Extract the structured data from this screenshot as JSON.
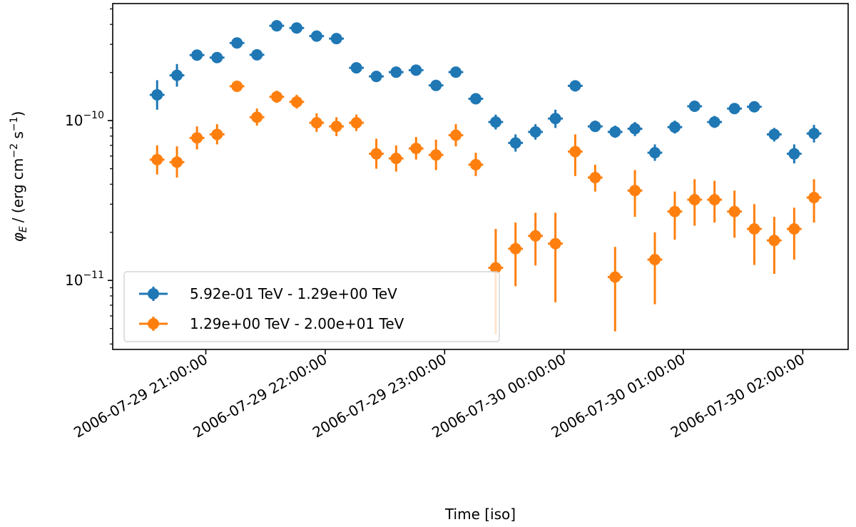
{
  "chart_data": {
    "type": "scatter",
    "title": "",
    "xlabel": "Time [iso]",
    "ylabel": {
      "symbol": "φ",
      "subscript": "E",
      "open": "/ (erg cm",
      "exp1": "−2",
      "mid": " s",
      "exp2": "−1",
      "close": ")"
    },
    "yscale": "log",
    "ylim": [
      3.7e-12,
      5.4e-10
    ],
    "xlim_hours": [
      -0.78,
      5.38
    ],
    "x_origin": "2006-07-29 21:00:00",
    "x_ticks": [
      {
        "hours": 0,
        "label": "2006-07-29 21:00:00"
      },
      {
        "hours": 1,
        "label": "2006-07-29 22:00:00"
      },
      {
        "hours": 2,
        "label": "2006-07-29 23:00:00"
      },
      {
        "hours": 3,
        "label": "2006-07-30 00:00:00"
      },
      {
        "hours": 4,
        "label": "2006-07-30 01:00:00"
      },
      {
        "hours": 5,
        "label": "2006-07-30 02:00:00"
      }
    ],
    "y_ticks": [
      {
        "value": 1e-10,
        "base": "10",
        "exp": "−10"
      },
      {
        "value": 1e-11,
        "base": "10",
        "exp": "−11"
      }
    ],
    "bin_half_width_hours": 0.062,
    "legend_position": "lower-left",
    "series": [
      {
        "name": "5.92e-01 TeV - 1.29e+00 TeV",
        "color": "#1f77b4",
        "points": [
          {
            "t": -0.408,
            "y": 1.45e-10,
            "lo": 1.17e-10,
            "hi": 1.79e-10
          },
          {
            "t": -0.242,
            "y": 1.92e-10,
            "lo": 1.63e-10,
            "hi": 2.26e-10
          },
          {
            "t": -0.074,
            "y": 2.57e-10,
            "lo": 2.39e-10,
            "hi": 2.76e-10
          },
          {
            "t": 0.094,
            "y": 2.48e-10,
            "lo": 2.33e-10,
            "hi": 2.64e-10
          },
          {
            "t": 0.261,
            "y": 3.06e-10,
            "lo": 2.89e-10,
            "hi": 3.24e-10
          },
          {
            "t": 0.428,
            "y": 2.58e-10,
            "lo": 2.46e-10,
            "hi": 2.7e-10
          },
          {
            "t": 0.594,
            "y": 3.92e-10,
            "lo": 3.78e-10,
            "hi": 4.06e-10
          },
          {
            "t": 0.761,
            "y": 3.8e-10,
            "lo": 3.65e-10,
            "hi": 3.95e-10
          },
          {
            "t": 0.928,
            "y": 3.38e-10,
            "lo": 3.23e-10,
            "hi": 3.54e-10
          },
          {
            "t": 1.094,
            "y": 3.26e-10,
            "lo": 3.1e-10,
            "hi": 3.43e-10
          },
          {
            "t": 1.261,
            "y": 2.14e-10,
            "lo": 2.03e-10,
            "hi": 2.26e-10
          },
          {
            "t": 1.428,
            "y": 1.89e-10,
            "lo": 1.78e-10,
            "hi": 2e-10
          },
          {
            "t": 1.594,
            "y": 2.01e-10,
            "lo": 1.91e-10,
            "hi": 2.11e-10
          },
          {
            "t": 1.761,
            "y": 2.07e-10,
            "lo": 1.96e-10,
            "hi": 2.18e-10
          },
          {
            "t": 1.928,
            "y": 1.66e-10,
            "lo": 1.55e-10,
            "hi": 1.78e-10
          },
          {
            "t": 2.094,
            "y": 2.01e-10,
            "lo": 1.91e-10,
            "hi": 2.12e-10
          },
          {
            "t": 2.261,
            "y": 1.37e-10,
            "lo": 1.28e-10,
            "hi": 1.47e-10
          },
          {
            "t": 2.428,
            "y": 9.8e-11,
            "lo": 8.8e-11,
            "hi": 1.09e-10
          },
          {
            "t": 2.594,
            "y": 7.25e-11,
            "lo": 6.4e-11,
            "hi": 8.2e-11
          },
          {
            "t": 2.761,
            "y": 8.5e-11,
            "lo": 7.6e-11,
            "hi": 9.5e-11
          },
          {
            "t": 2.928,
            "y": 1.03e-10,
            "lo": 9e-11,
            "hi": 1.17e-10
          },
          {
            "t": 3.094,
            "y": 1.65e-10,
            "lo": 1.52e-10,
            "hi": 1.79e-10
          },
          {
            "t": 3.261,
            "y": 9.2e-11,
            "lo": 8.5e-11,
            "hi": 1e-10
          },
          {
            "t": 3.428,
            "y": 8.5e-11,
            "lo": 7.8e-11,
            "hi": 9.3e-11
          },
          {
            "t": 3.594,
            "y": 8.9e-11,
            "lo": 8e-11,
            "hi": 9.8e-11
          },
          {
            "t": 3.761,
            "y": 6.3e-11,
            "lo": 5.6e-11,
            "hi": 7.1e-11
          },
          {
            "t": 3.928,
            "y": 9.1e-11,
            "lo": 8.3e-11,
            "hi": 1e-10
          },
          {
            "t": 4.094,
            "y": 1.23e-10,
            "lo": 1.14e-10,
            "hi": 1.33e-10
          },
          {
            "t": 4.261,
            "y": 9.8e-11,
            "lo": 9e-11,
            "hi": 1.07e-10
          },
          {
            "t": 4.428,
            "y": 1.19e-10,
            "lo": 1.11e-10,
            "hi": 1.28e-10
          },
          {
            "t": 4.594,
            "y": 1.22e-10,
            "lo": 1.13e-10,
            "hi": 1.32e-10
          },
          {
            "t": 4.761,
            "y": 8.2e-11,
            "lo": 7.4e-11,
            "hi": 9e-11
          },
          {
            "t": 4.928,
            "y": 6.2e-11,
            "lo": 5.4e-11,
            "hi": 7.1e-11
          },
          {
            "t": 5.094,
            "y": 8.3e-11,
            "lo": 7.3e-11,
            "hi": 9.4e-11
          }
        ]
      },
      {
        "name": "1.29e+00 TeV - 2.00e+01 TeV",
        "color": "#ff7f0e",
        "points": [
          {
            "t": -0.408,
            "y": 5.7e-11,
            "lo": 4.6e-11,
            "hi": 7e-11
          },
          {
            "t": -0.242,
            "y": 5.5e-11,
            "lo": 4.4e-11,
            "hi": 6.9e-11
          },
          {
            "t": -0.074,
            "y": 7.8e-11,
            "lo": 6.6e-11,
            "hi": 9.2e-11
          },
          {
            "t": 0.094,
            "y": 8.2e-11,
            "lo": 7.1e-11,
            "hi": 9.5e-11
          },
          {
            "t": 0.261,
            "y": 1.64e-10,
            "lo": 1.54e-10,
            "hi": 1.75e-10
          },
          {
            "t": 0.428,
            "y": 1.05e-10,
            "lo": 9.3e-11,
            "hi": 1.19e-10
          },
          {
            "t": 0.594,
            "y": 1.41e-10,
            "lo": 1.29e-10,
            "hi": 1.54e-10
          },
          {
            "t": 0.761,
            "y": 1.31e-10,
            "lo": 1.19e-10,
            "hi": 1.45e-10
          },
          {
            "t": 0.928,
            "y": 9.7e-11,
            "lo": 8.5e-11,
            "hi": 1.11e-10
          },
          {
            "t": 1.094,
            "y": 9.2e-11,
            "lo": 8e-11,
            "hi": 1.05e-10
          },
          {
            "t": 1.261,
            "y": 9.7e-11,
            "lo": 8.6e-11,
            "hi": 1.09e-10
          },
          {
            "t": 1.428,
            "y": 6.2e-11,
            "lo": 5e-11,
            "hi": 7.7e-11
          },
          {
            "t": 1.594,
            "y": 5.8e-11,
            "lo": 4.8e-11,
            "hi": 7e-11
          },
          {
            "t": 1.761,
            "y": 6.7e-11,
            "lo": 5.7e-11,
            "hi": 7.9e-11
          },
          {
            "t": 1.928,
            "y": 6.1e-11,
            "lo": 4.9e-11,
            "hi": 7.6e-11
          },
          {
            "t": 2.094,
            "y": 8.1e-11,
            "lo": 6.9e-11,
            "hi": 9.5e-11
          },
          {
            "t": 2.261,
            "y": 5.3e-11,
            "lo": 4.5e-11,
            "hi": 6.3e-11
          },
          {
            "t": 2.428,
            "y": 1.2e-11,
            "lo": 4.6e-12,
            "hi": 2.1e-11
          },
          {
            "t": 2.594,
            "y": 1.58e-11,
            "lo": 9.2e-12,
            "hi": 2.3e-11
          },
          {
            "t": 2.761,
            "y": 1.9e-11,
            "lo": 1.24e-11,
            "hi": 2.65e-11
          },
          {
            "t": 2.928,
            "y": 1.7e-11,
            "lo": 7.3e-12,
            "hi": 2.65e-11
          },
          {
            "t": 3.094,
            "y": 6.4e-11,
            "lo": 4.5e-11,
            "hi": 8.2e-11
          },
          {
            "t": 3.261,
            "y": 4.4e-11,
            "lo": 3.6e-11,
            "hi": 5.3e-11
          },
          {
            "t": 3.428,
            "y": 1.05e-11,
            "lo": 4.8e-12,
            "hi": 1.62e-11
          },
          {
            "t": 3.594,
            "y": 3.65e-11,
            "lo": 2.5e-11,
            "hi": 4.9e-11
          },
          {
            "t": 3.761,
            "y": 1.35e-11,
            "lo": 7.1e-12,
            "hi": 2e-11
          },
          {
            "t": 3.928,
            "y": 2.7e-11,
            "lo": 1.8e-11,
            "hi": 3.6e-11
          },
          {
            "t": 4.094,
            "y": 3.2e-11,
            "lo": 2.2e-11,
            "hi": 4.3e-11
          },
          {
            "t": 4.261,
            "y": 3.2e-11,
            "lo": 2.3e-11,
            "hi": 4.2e-11
          },
          {
            "t": 4.428,
            "y": 2.7e-11,
            "lo": 1.85e-11,
            "hi": 3.65e-11
          },
          {
            "t": 4.594,
            "y": 2.1e-11,
            "lo": 1.25e-11,
            "hi": 3e-11
          },
          {
            "t": 4.761,
            "y": 1.78e-11,
            "lo": 1.1e-11,
            "hi": 2.5e-11
          },
          {
            "t": 4.928,
            "y": 2.1e-11,
            "lo": 1.35e-11,
            "hi": 2.85e-11
          },
          {
            "t": 5.094,
            "y": 3.3e-11,
            "lo": 2.3e-11,
            "hi": 4.3e-11
          }
        ]
      }
    ]
  }
}
